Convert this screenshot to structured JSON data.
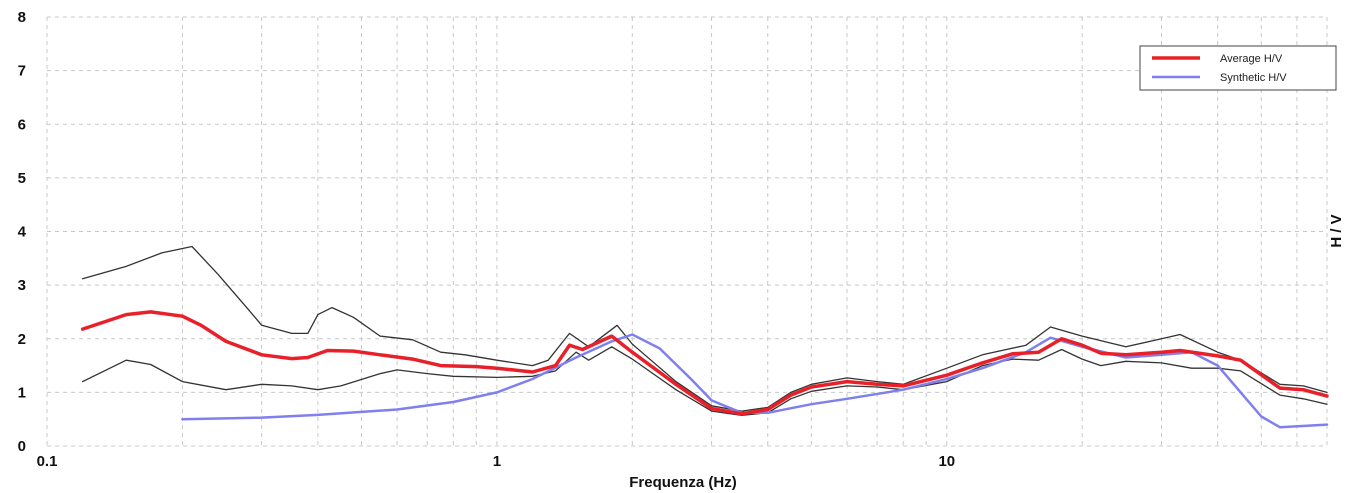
{
  "chart_data": {
    "type": "line",
    "title": "",
    "xlabel": "Frequenza (Hz)",
    "ylabel": "H / V",
    "x_scale": "log",
    "xlim": [
      0.1,
      70
    ],
    "ylim": [
      0,
      8
    ],
    "x_ticks": [
      "0.1",
      "1",
      "10"
    ],
    "y_ticks": [
      "0",
      "1",
      "2",
      "3",
      "4",
      "5",
      "6",
      "7",
      "8"
    ],
    "grid": true,
    "legend_position": "top-right",
    "series": [
      {
        "name": "Average H/V",
        "color": "#e8202a",
        "points": [
          [
            0.12,
            2.18
          ],
          [
            0.15,
            2.45
          ],
          [
            0.17,
            2.5
          ],
          [
            0.2,
            2.42
          ],
          [
            0.22,
            2.25
          ],
          [
            0.25,
            1.95
          ],
          [
            0.3,
            1.7
          ],
          [
            0.35,
            1.63
          ],
          [
            0.38,
            1.65
          ],
          [
            0.42,
            1.78
          ],
          [
            0.48,
            1.77
          ],
          [
            0.55,
            1.7
          ],
          [
            0.65,
            1.62
          ],
          [
            0.75,
            1.5
          ],
          [
            0.9,
            1.48
          ],
          [
            1.0,
            1.45
          ],
          [
            1.2,
            1.38
          ],
          [
            1.35,
            1.5
          ],
          [
            1.45,
            1.88
          ],
          [
            1.55,
            1.8
          ],
          [
            1.8,
            2.05
          ],
          [
            2.0,
            1.75
          ],
          [
            2.5,
            1.15
          ],
          [
            3.0,
            0.7
          ],
          [
            3.5,
            0.6
          ],
          [
            4.0,
            0.68
          ],
          [
            4.5,
            0.95
          ],
          [
            5.0,
            1.1
          ],
          [
            6.0,
            1.2
          ],
          [
            7.0,
            1.15
          ],
          [
            8.0,
            1.12
          ],
          [
            10.0,
            1.32
          ],
          [
            12.0,
            1.55
          ],
          [
            14.0,
            1.72
          ],
          [
            16.0,
            1.75
          ],
          [
            18.0,
            2.0
          ],
          [
            20.0,
            1.88
          ],
          [
            22.0,
            1.73
          ],
          [
            25.0,
            1.7
          ],
          [
            30.0,
            1.75
          ],
          [
            33.0,
            1.78
          ],
          [
            40.0,
            1.68
          ],
          [
            45.0,
            1.6
          ],
          [
            55.0,
            1.08
          ],
          [
            62.0,
            1.05
          ],
          [
            70.0,
            0.93
          ]
        ]
      },
      {
        "name": "Synthetic H/V",
        "color": "#7f80ee",
        "points": [
          [
            0.2,
            0.5
          ],
          [
            0.3,
            0.53
          ],
          [
            0.4,
            0.58
          ],
          [
            0.6,
            0.68
          ],
          [
            0.8,
            0.82
          ],
          [
            1.0,
            1.0
          ],
          [
            1.2,
            1.25
          ],
          [
            1.5,
            1.65
          ],
          [
            1.8,
            1.95
          ],
          [
            2.0,
            2.08
          ],
          [
            2.3,
            1.82
          ],
          [
            2.7,
            1.25
          ],
          [
            3.0,
            0.85
          ],
          [
            3.5,
            0.62
          ],
          [
            4.0,
            0.62
          ],
          [
            5.0,
            0.78
          ],
          [
            6.0,
            0.88
          ],
          [
            8.0,
            1.05
          ],
          [
            10.0,
            1.25
          ],
          [
            12.0,
            1.45
          ],
          [
            15.0,
            1.75
          ],
          [
            17.0,
            2.02
          ],
          [
            20.0,
            1.85
          ],
          [
            25.0,
            1.65
          ],
          [
            30.0,
            1.7
          ],
          [
            35.0,
            1.75
          ],
          [
            40.0,
            1.5
          ],
          [
            45.0,
            1.0
          ],
          [
            50.0,
            0.55
          ],
          [
            55.0,
            0.35
          ],
          [
            70.0,
            0.4
          ]
        ]
      },
      {
        "name": "",
        "color": "#333333",
        "points": [
          [
            0.12,
            3.12
          ],
          [
            0.15,
            3.35
          ],
          [
            0.18,
            3.6
          ],
          [
            0.21,
            3.72
          ],
          [
            0.24,
            3.2
          ],
          [
            0.28,
            2.55
          ],
          [
            0.3,
            2.25
          ],
          [
            0.35,
            2.1
          ],
          [
            0.38,
            2.1
          ],
          [
            0.4,
            2.45
          ],
          [
            0.43,
            2.58
          ],
          [
            0.48,
            2.4
          ],
          [
            0.55,
            2.05
          ],
          [
            0.65,
            1.98
          ],
          [
            0.75,
            1.75
          ],
          [
            0.85,
            1.7
          ],
          [
            1.0,
            1.6
          ],
          [
            1.2,
            1.5
          ],
          [
            1.3,
            1.6
          ],
          [
            1.45,
            2.1
          ],
          [
            1.6,
            1.85
          ],
          [
            1.85,
            2.25
          ],
          [
            2.0,
            1.9
          ],
          [
            2.5,
            1.2
          ],
          [
            3.0,
            0.75
          ],
          [
            3.5,
            0.65
          ],
          [
            4.0,
            0.72
          ],
          [
            4.5,
            1.0
          ],
          [
            5.0,
            1.15
          ],
          [
            6.0,
            1.27
          ],
          [
            7.0,
            1.2
          ],
          [
            8.0,
            1.15
          ],
          [
            10.0,
            1.45
          ],
          [
            12.0,
            1.7
          ],
          [
            15.0,
            1.88
          ],
          [
            17.0,
            2.22
          ],
          [
            20.0,
            2.05
          ],
          [
            25.0,
            1.85
          ],
          [
            30.0,
            2.0
          ],
          [
            33.0,
            2.08
          ],
          [
            40.0,
            1.75
          ],
          [
            45.0,
            1.6
          ],
          [
            55.0,
            1.15
          ],
          [
            62.0,
            1.12
          ],
          [
            70.0,
            1.0
          ]
        ]
      },
      {
        "name": "",
        "color": "#333333",
        "points": [
          [
            0.12,
            1.2
          ],
          [
            0.15,
            1.6
          ],
          [
            0.17,
            1.52
          ],
          [
            0.2,
            1.2
          ],
          [
            0.25,
            1.05
          ],
          [
            0.3,
            1.15
          ],
          [
            0.35,
            1.12
          ],
          [
            0.4,
            1.05
          ],
          [
            0.45,
            1.12
          ],
          [
            0.55,
            1.35
          ],
          [
            0.6,
            1.42
          ],
          [
            0.7,
            1.35
          ],
          [
            0.8,
            1.3
          ],
          [
            1.0,
            1.28
          ],
          [
            1.2,
            1.3
          ],
          [
            1.35,
            1.4
          ],
          [
            1.5,
            1.75
          ],
          [
            1.6,
            1.6
          ],
          [
            1.8,
            1.85
          ],
          [
            2.0,
            1.62
          ],
          [
            2.5,
            1.05
          ],
          [
            3.0,
            0.65
          ],
          [
            3.5,
            0.57
          ],
          [
            4.0,
            0.62
          ],
          [
            4.5,
            0.88
          ],
          [
            5.0,
            1.02
          ],
          [
            6.0,
            1.12
          ],
          [
            7.0,
            1.1
          ],
          [
            8.0,
            1.05
          ],
          [
            10.0,
            1.2
          ],
          [
            12.0,
            1.5
          ],
          [
            14.0,
            1.62
          ],
          [
            16.0,
            1.6
          ],
          [
            18.0,
            1.8
          ],
          [
            20.0,
            1.62
          ],
          [
            22.0,
            1.5
          ],
          [
            25.0,
            1.58
          ],
          [
            30.0,
            1.55
          ],
          [
            35.0,
            1.45
          ],
          [
            40.0,
            1.45
          ],
          [
            45.0,
            1.4
          ],
          [
            55.0,
            0.95
          ],
          [
            62.0,
            0.88
          ],
          [
            70.0,
            0.78
          ]
        ]
      }
    ]
  }
}
